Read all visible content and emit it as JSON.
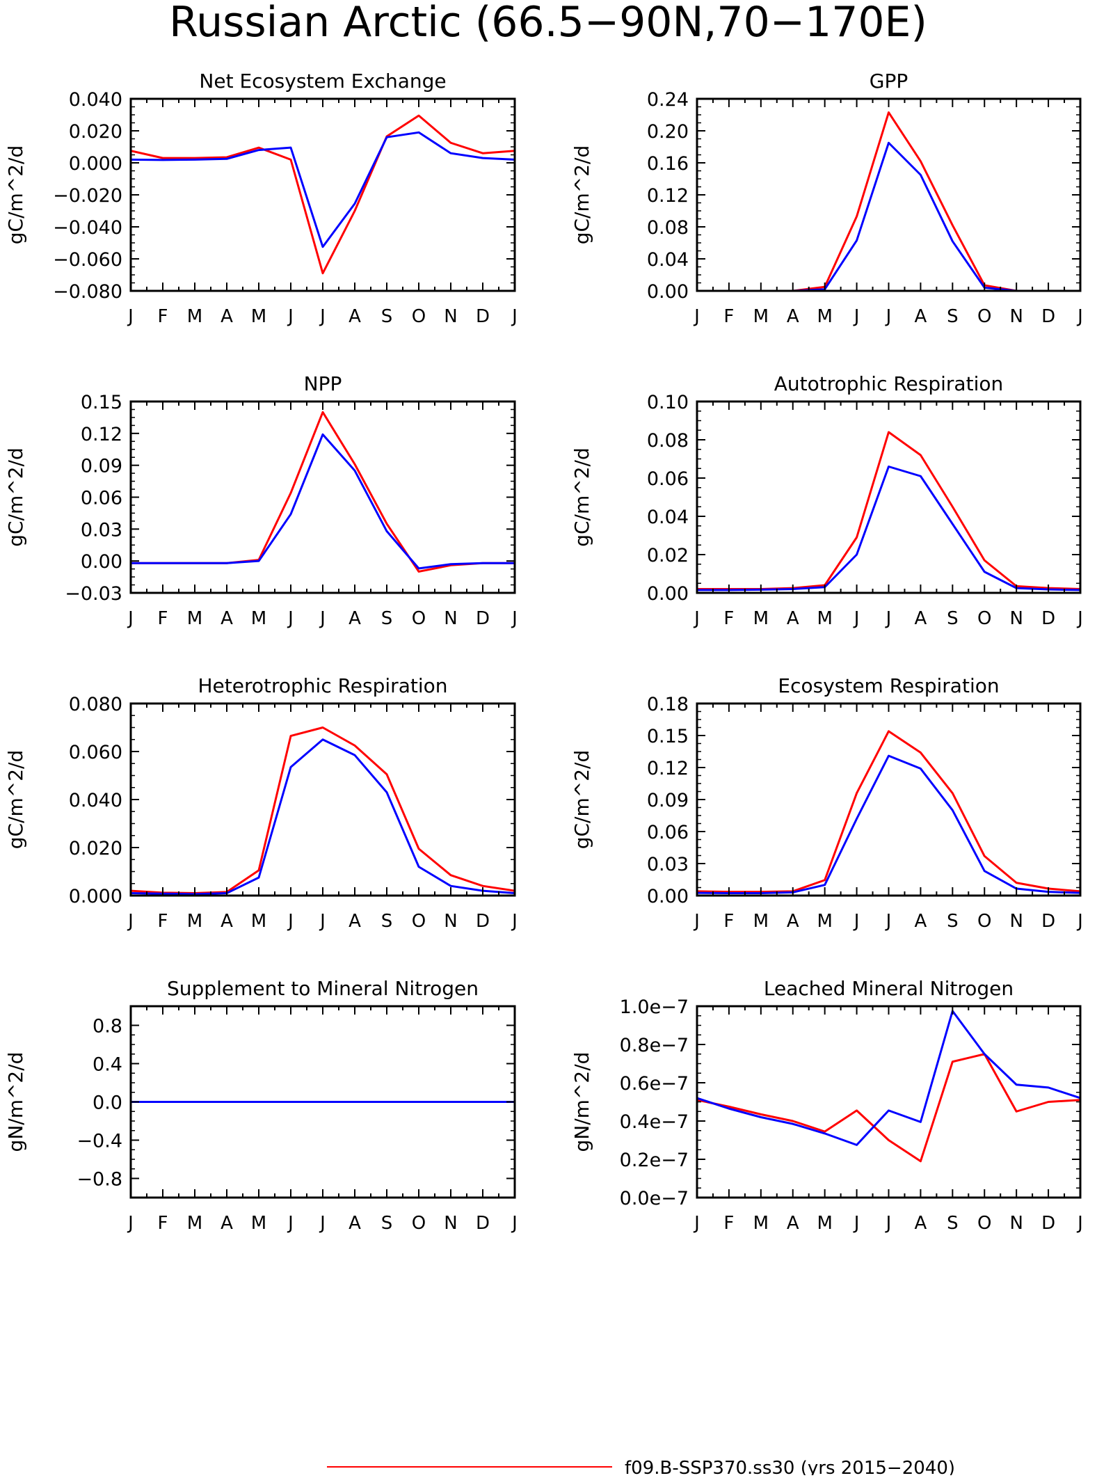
{
  "page": {
    "title": "Russian Arctic (66.5−90N,70−170E)"
  },
  "legend": {
    "entries": [
      {
        "label": "f09.B-SSP370.ss30 (yrs 2015−2040)",
        "color": "#ff0000"
      }
    ]
  },
  "colors": {
    "series_red": "#ff0000",
    "series_blue": "#0000ff",
    "axis": "#000000"
  },
  "chart_data": [
    {
      "type": "line",
      "title": "Net Ecosystem Exchange",
      "ylabel": "gC/m^2/d",
      "xlabel": "",
      "categories": [
        "J",
        "F",
        "M",
        "A",
        "M",
        "J",
        "J",
        "A",
        "S",
        "O",
        "N",
        "D",
        "J"
      ],
      "ylim": [
        -0.08,
        0.04
      ],
      "yticks": [
        -0.08,
        -0.06,
        -0.04,
        -0.02,
        0.0,
        0.02,
        0.04
      ],
      "ytick_labels": [
        "−0.080",
        "−0.060",
        "−0.040",
        "−0.020",
        "0.000",
        "0.020",
        "0.040"
      ],
      "series": [
        {
          "color": "#ff0000",
          "values": [
            0.0075,
            0.003,
            0.003,
            0.0035,
            0.0095,
            0.002,
            -0.069,
            -0.03,
            0.0165,
            0.0295,
            0.0125,
            0.006,
            0.0075
          ]
        },
        {
          "color": "#0000ff",
          "values": [
            0.002,
            0.0018,
            0.002,
            0.0025,
            0.008,
            0.0095,
            -0.0525,
            -0.0255,
            0.016,
            0.019,
            0.006,
            0.003,
            0.002
          ]
        }
      ]
    },
    {
      "type": "line",
      "title": "GPP",
      "ylabel": "gC/m^2/d",
      "xlabel": "",
      "categories": [
        "J",
        "F",
        "M",
        "A",
        "M",
        "J",
        "J",
        "A",
        "S",
        "O",
        "N",
        "D",
        "J"
      ],
      "ylim": [
        0.0,
        0.24
      ],
      "yticks": [
        0.0,
        0.04,
        0.08,
        0.12,
        0.16,
        0.2,
        0.24
      ],
      "ytick_labels": [
        "0.00",
        "0.04",
        "0.08",
        "0.12",
        "0.16",
        "0.20",
        "0.24"
      ],
      "series": [
        {
          "color": "#ff0000",
          "values": [
            0.0,
            0.0,
            0.0,
            0.0,
            0.005,
            0.093,
            0.223,
            0.162,
            0.082,
            0.007,
            0.0,
            0.0,
            0.0
          ]
        },
        {
          "color": "#0000ff",
          "values": [
            0.0,
            0.0,
            0.0,
            0.0,
            0.002,
            0.063,
            0.185,
            0.145,
            0.062,
            0.004,
            0.0,
            0.0,
            0.0
          ]
        }
      ]
    },
    {
      "type": "line",
      "title": "NPP",
      "ylabel": "gC/m^2/d",
      "xlabel": "",
      "categories": [
        "J",
        "F",
        "M",
        "A",
        "M",
        "J",
        "J",
        "A",
        "S",
        "O",
        "N",
        "D",
        "J"
      ],
      "ylim": [
        -0.03,
        0.15
      ],
      "yticks": [
        -0.03,
        0.0,
        0.03,
        0.06,
        0.09,
        0.12,
        0.15
      ],
      "ytick_labels": [
        "−0.03",
        "0.00",
        "0.03",
        "0.06",
        "0.09",
        "0.12",
        "0.15"
      ],
      "series": [
        {
          "color": "#ff0000",
          "values": [
            -0.002,
            -0.002,
            -0.002,
            -0.002,
            0.001,
            0.064,
            0.14,
            0.091,
            0.035,
            -0.01,
            -0.004,
            -0.002,
            -0.002
          ]
        },
        {
          "color": "#0000ff",
          "values": [
            -0.002,
            -0.002,
            -0.002,
            -0.002,
            0.0,
            0.044,
            0.119,
            0.085,
            0.028,
            -0.007,
            -0.003,
            -0.002,
            -0.002
          ]
        }
      ]
    },
    {
      "type": "line",
      "title": "Autotrophic Respiration",
      "ylabel": "gC/m^2/d",
      "xlabel": "",
      "categories": [
        "J",
        "F",
        "M",
        "A",
        "M",
        "J",
        "J",
        "A",
        "S",
        "O",
        "N",
        "D",
        "J"
      ],
      "ylim": [
        0.0,
        0.1
      ],
      "yticks": [
        0.0,
        0.02,
        0.04,
        0.06,
        0.08,
        0.1
      ],
      "ytick_labels": [
        "0.00",
        "0.02",
        "0.04",
        "0.06",
        "0.08",
        "0.10"
      ],
      "series": [
        {
          "color": "#ff0000",
          "values": [
            0.002,
            0.002,
            0.002,
            0.0025,
            0.004,
            0.029,
            0.084,
            0.072,
            0.045,
            0.017,
            0.0035,
            0.0025,
            0.002
          ]
        },
        {
          "color": "#0000ff",
          "values": [
            0.0015,
            0.0015,
            0.0017,
            0.002,
            0.003,
            0.02,
            0.066,
            0.061,
            0.036,
            0.011,
            0.0025,
            0.0018,
            0.0015
          ]
        }
      ]
    },
    {
      "type": "line",
      "title": "Heterotrophic Respiration",
      "ylabel": "gC/m^2/d",
      "xlabel": "",
      "categories": [
        "J",
        "F",
        "M",
        "A",
        "M",
        "J",
        "J",
        "A",
        "S",
        "O",
        "N",
        "D",
        "J"
      ],
      "ylim": [
        0.0,
        0.08
      ],
      "yticks": [
        0.0,
        0.02,
        0.04,
        0.06,
        0.08
      ],
      "ytick_labels": [
        "0.000",
        "0.020",
        "0.040",
        "0.060",
        "0.080"
      ],
      "series": [
        {
          "color": "#ff0000",
          "values": [
            0.002,
            0.0012,
            0.001,
            0.0015,
            0.0105,
            0.0665,
            0.07,
            0.0625,
            0.0505,
            0.0195,
            0.0085,
            0.004,
            0.002
          ]
        },
        {
          "color": "#0000ff",
          "values": [
            0.001,
            0.0008,
            0.0006,
            0.001,
            0.0075,
            0.0535,
            0.065,
            0.0585,
            0.043,
            0.012,
            0.004,
            0.002,
            0.001
          ]
        }
      ]
    },
    {
      "type": "line",
      "title": "Ecosystem Respiration",
      "ylabel": "gC/m^2/d",
      "xlabel": "",
      "categories": [
        "J",
        "F",
        "M",
        "A",
        "M",
        "J",
        "J",
        "A",
        "S",
        "O",
        "N",
        "D",
        "J"
      ],
      "ylim": [
        0.0,
        0.18
      ],
      "yticks": [
        0.0,
        0.03,
        0.06,
        0.09,
        0.12,
        0.15,
        0.18
      ],
      "ytick_labels": [
        "0.00",
        "0.03",
        "0.06",
        "0.09",
        "0.12",
        "0.15",
        "0.18"
      ],
      "series": [
        {
          "color": "#ff0000",
          "values": [
            0.004,
            0.0035,
            0.0035,
            0.004,
            0.0145,
            0.096,
            0.154,
            0.134,
            0.096,
            0.037,
            0.012,
            0.0065,
            0.004
          ]
        },
        {
          "color": "#0000ff",
          "values": [
            0.0025,
            0.0023,
            0.0023,
            0.003,
            0.01,
            0.072,
            0.131,
            0.119,
            0.08,
            0.023,
            0.0065,
            0.0035,
            0.0025
          ]
        }
      ]
    },
    {
      "type": "line",
      "title": "Supplement to Mineral Nitrogen",
      "ylabel": "gN/m^2/d",
      "xlabel": "",
      "categories": [
        "J",
        "F",
        "M",
        "A",
        "M",
        "J",
        "J",
        "A",
        "S",
        "O",
        "N",
        "D",
        "J"
      ],
      "ylim": [
        -1.0,
        1.0
      ],
      "yticks": [
        -0.8,
        -0.4,
        0.0,
        0.4,
        0.8
      ],
      "ytick_labels": [
        "−0.8",
        "−0.4",
        "0.0",
        "0.4",
        "0.8"
      ],
      "series": [
        {
          "color": "#ff0000",
          "values": [
            0,
            0,
            0,
            0,
            0,
            0,
            0,
            0,
            0,
            0,
            0,
            0,
            0
          ]
        },
        {
          "color": "#0000ff",
          "values": [
            0,
            0,
            0,
            0,
            0,
            0,
            0,
            0,
            0,
            0,
            0,
            0,
            0
          ]
        }
      ]
    },
    {
      "type": "line",
      "title": "Leached Mineral Nitrogen",
      "ylabel": "gN/m^2/d",
      "xlabel": "",
      "categories": [
        "J",
        "F",
        "M",
        "A",
        "M",
        "J",
        "J",
        "A",
        "S",
        "O",
        "N",
        "D",
        "J"
      ],
      "ylim": [
        0.0,
        1e-07
      ],
      "yticks": [
        0.0,
        2e-08,
        4e-08,
        6e-08,
        8e-08,
        1e-07
      ],
      "ytick_labels": [
        "0.0e−7",
        "0.2e−7",
        "0.4e−7",
        "0.6e−7",
        "0.8e−7",
        "1.0e−7"
      ],
      "series": [
        {
          "color": "#ff0000",
          "values": [
            5.1e-08,
            4.75e-08,
            4.35e-08,
            4e-08,
            3.45e-08,
            4.55e-08,
            3e-08,
            1.9e-08,
            7.1e-08,
            7.5e-08,
            4.5e-08,
            5e-08,
            5.1e-08
          ]
        },
        {
          "color": "#0000ff",
          "values": [
            5.2e-08,
            4.65e-08,
            4.2e-08,
            3.85e-08,
            3.35e-08,
            2.75e-08,
            4.55e-08,
            3.95e-08,
            9.75e-08,
            7.5e-08,
            5.9e-08,
            5.75e-08,
            5.2e-08
          ]
        }
      ]
    }
  ]
}
